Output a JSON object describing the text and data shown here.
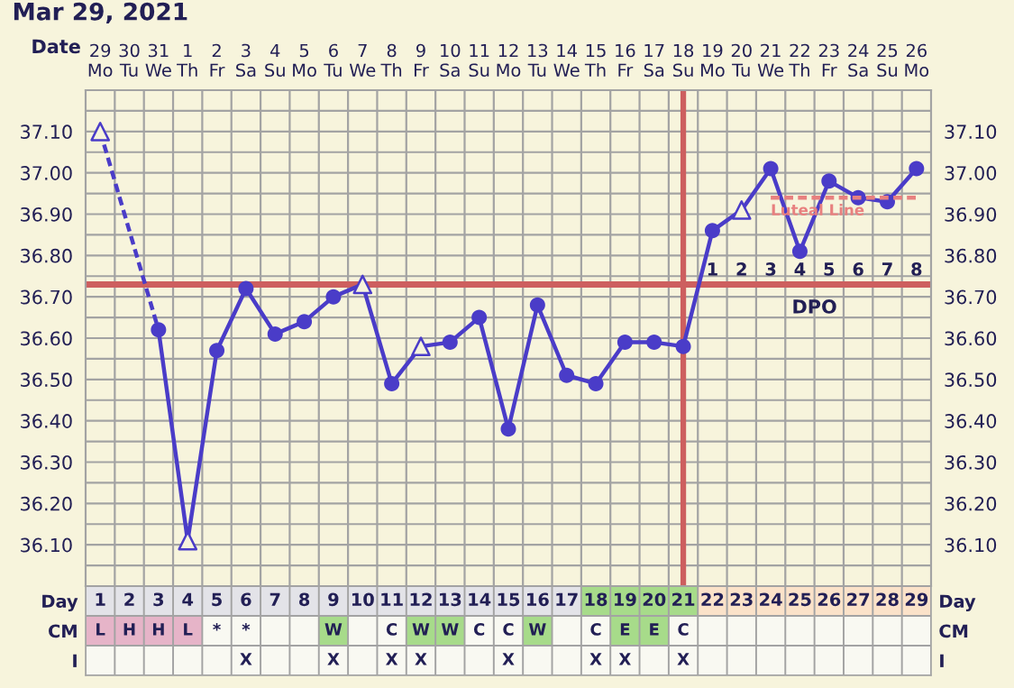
{
  "chart_data": [
    {
      "type": "line",
      "title": "Mar 29, 2021",
      "xlabel": "Date",
      "categories": [
        "29\nMo",
        "30\nTu",
        "31\nWe",
        "1\nTh",
        "2\nFr",
        "3\nSa",
        "4\nSu",
        "5\nMo",
        "6\nTu",
        "7\nWe",
        "8\nTh",
        "9\nFr",
        "10\nSa",
        "11\nSu",
        "12\nMo",
        "13\nTu",
        "14\nWe",
        "15\nTh",
        "16\nFr",
        "17\nSa",
        "18\nSu",
        "19\nMo",
        "20\nTu",
        "21\nWe",
        "22\nTh",
        "23\nFr",
        "24\nSa",
        "25\nSu",
        "26\nMo"
      ],
      "ylim": [
        36.0,
        37.2
      ],
      "yticks": [
        {
          "value": 36.1,
          "label": "36.10"
        },
        {
          "value": 36.2,
          "label": "36.20"
        },
        {
          "value": 36.3,
          "label": "36.30"
        },
        {
          "value": 36.4,
          "label": "36.40"
        },
        {
          "value": 36.5,
          "label": "36.50"
        },
        {
          "value": 36.6,
          "label": "36.60"
        },
        {
          "value": 36.7,
          "label": "36.70"
        },
        {
          "value": 36.8,
          "label": "36.80"
        },
        {
          "value": 36.9,
          "label": "36.90"
        },
        {
          "value": 37.0,
          "label": "37.00"
        },
        {
          "value": 37.1,
          "label": "37.10"
        }
      ],
      "y2lim": [
        36.0,
        37.2
      ],
      "y2ticks": [
        {
          "value": 36.1,
          "label": "36.10"
        },
        {
          "value": 36.2,
          "label": "36.20"
        },
        {
          "value": 36.3,
          "label": "36.30"
        },
        {
          "value": 36.4,
          "label": "36.40"
        },
        {
          "value": 36.5,
          "label": "36.50"
        },
        {
          "value": 36.6,
          "label": "36.60"
        },
        {
          "value": 36.7,
          "label": "36.70"
        },
        {
          "value": 36.8,
          "label": "36.80"
        },
        {
          "value": 36.9,
          "label": "36.90"
        },
        {
          "value": 37.0,
          "label": "37.00"
        },
        {
          "value": 37.1,
          "label": "37.10"
        }
      ],
      "grid": true,
      "series": [
        {
          "type": "line",
          "color": "#4a3cc8",
          "marker": "none",
          "line_style": "solid",
          "values": [
            null,
            null,
            36.62,
            36.11,
            36.57,
            36.72,
            36.61,
            36.64,
            36.7,
            36.73,
            36.49,
            36.58,
            36.59,
            36.65,
            36.38,
            36.68,
            36.51,
            36.49,
            36.59,
            36.59,
            36.58,
            36.86,
            36.91,
            37.01,
            36.81,
            36.98,
            36.94,
            36.93,
            37.01
          ]
        },
        {
          "type": "line",
          "color": "#4a3cc8",
          "marker": "none",
          "line_style": "dashed",
          "values": [
            37.1,
            null,
            36.62,
            null,
            null,
            null,
            null,
            null,
            null,
            null,
            null,
            null,
            null,
            null,
            null,
            null,
            null,
            null,
            null,
            null,
            null,
            null,
            null,
            null,
            null,
            null,
            null,
            null,
            null
          ]
        },
        {
          "type": "scatter",
          "color": "#4a3cc8",
          "marker": "circle",
          "values": [
            null,
            null,
            36.62,
            null,
            36.57,
            36.72,
            36.61,
            36.64,
            36.7,
            null,
            36.49,
            null,
            36.59,
            36.65,
            36.38,
            36.68,
            36.51,
            36.49,
            36.59,
            36.59,
            36.58,
            36.86,
            null,
            37.01,
            36.81,
            36.98,
            36.94,
            36.93,
            37.01
          ]
        },
        {
          "type": "scatter",
          "color": "#4a3cc8",
          "marker": "triangle",
          "values": [
            37.1,
            null,
            null,
            36.11,
            null,
            null,
            null,
            null,
            null,
            36.73,
            null,
            36.58,
            null,
            null,
            null,
            null,
            null,
            null,
            null,
            null,
            null,
            null,
            36.91,
            null,
            null,
            null,
            null,
            null,
            null
          ]
        },
        {
          "type": "line",
          "name": "Luteal Line",
          "color": "#e8807f",
          "marker": "none",
          "line_style": "dashed",
          "values": [
            null,
            null,
            null,
            null,
            null,
            null,
            null,
            null,
            null,
            null,
            null,
            null,
            null,
            null,
            null,
            null,
            null,
            null,
            null,
            null,
            null,
            null,
            null,
            36.94,
            36.94,
            36.94,
            36.94,
            36.94,
            36.94
          ]
        }
      ],
      "ref_lines": [
        {
          "axis": "y",
          "value": 36.73,
          "color": "#cd5f5f"
        },
        {
          "axis": "x",
          "value": "18\nSu",
          "color": "#cd5f5f"
        }
      ],
      "annotations": [
        "1",
        "2",
        "3",
        "4",
        "5",
        "6",
        "7",
        "8",
        "DPO"
      ]
    },
    {
      "type": "heatmap",
      "categories": [
        "1",
        "2",
        "3",
        "4",
        "5",
        "6",
        "7",
        "8",
        "9",
        "10",
        "11",
        "12",
        "13",
        "14",
        "15",
        "16",
        "17",
        "18",
        "19",
        "20",
        "21",
        "22",
        "23",
        "24",
        "25",
        "26",
        "27",
        "28",
        "29"
      ],
      "y_categories": [
        "Day",
        "CM",
        "I"
      ],
      "y2_categories": [
        "Day",
        "CM",
        "I"
      ],
      "cells": [
        [
          null,
          null,
          null,
          null,
          null,
          null,
          null,
          null,
          null,
          null,
          null,
          null,
          null,
          null,
          null,
          null,
          null,
          null,
          null,
          null,
          null,
          null,
          null,
          null,
          null,
          null,
          null,
          null,
          null
        ],
        [
          null,
          null,
          null,
          null,
          null,
          null,
          null,
          null,
          null,
          null,
          null,
          null,
          null,
          null,
          null,
          null,
          null,
          null,
          null,
          null,
          null,
          null,
          null,
          null,
          null,
          null,
          null,
          null,
          null
        ],
        [
          null,
          null,
          null,
          null,
          null,
          null,
          null,
          null,
          null,
          null,
          null,
          null,
          null,
          null,
          null,
          null,
          null,
          null,
          null,
          null,
          null,
          null,
          null,
          null,
          null,
          null,
          null,
          null,
          null
        ]
      ],
      "cell_labels": [
        [
          null,
          null,
          null,
          null,
          null,
          null,
          null,
          null,
          null,
          null,
          null,
          null,
          null,
          null,
          null,
          null,
          null,
          null,
          null,
          null,
          null,
          null,
          null,
          null,
          null,
          null,
          null,
          null,
          null
        ],
        [
          "L",
          "H",
          "H",
          "L",
          "*",
          "*",
          null,
          null,
          "W",
          null,
          "C",
          "W",
          "W",
          "C",
          "C",
          "W",
          null,
          "C",
          "E",
          "E",
          "C",
          null,
          null,
          null,
          null,
          null,
          null,
          null,
          null
        ],
        [
          null,
          null,
          null,
          null,
          null,
          "X",
          null,
          null,
          "X",
          null,
          "X",
          "X",
          null,
          null,
          "X",
          null,
          null,
          "X",
          "X",
          null,
          "X",
          null,
          null,
          null,
          null,
          null,
          null,
          null,
          null
        ]
      ],
      "colors": [
        [
          "#e3e3e8",
          "#e3e3e8",
          "#e3e3e8",
          "#e3e3e8",
          "#e3e3e8",
          "#e3e3e8",
          "#e3e3e8",
          "#e3e3e8",
          "#e3e3e8",
          "#e3e3e8",
          "#e3e3e8",
          "#e3e3e8",
          "#e3e3e8",
          "#e3e3e8",
          "#e3e3e8",
          "#e3e3e8",
          "#e3e3e8",
          "#a7db8a",
          "#a7db8a",
          "#a7db8a",
          "#a7db8a",
          "#fbe2c9",
          "#fbe2c9",
          "#fbe2c9",
          "#fbe2c9",
          "#fbe2c9",
          "#fbe2c9",
          "#fbe2c9",
          "#fbe2c9"
        ],
        [
          "#e6b4c8",
          "#e6b4c8",
          "#e6b4c8",
          "#e6b4c8",
          null,
          null,
          null,
          null,
          "#a7db8a",
          null,
          null,
          "#a7db8a",
          "#a7db8a",
          null,
          null,
          "#a7db8a",
          null,
          null,
          "#a7db8a",
          "#a7db8a",
          null,
          null,
          null,
          null,
          null,
          null,
          null,
          null,
          null
        ],
        [
          null,
          null,
          null,
          null,
          null,
          null,
          null,
          null,
          null,
          null,
          null,
          null,
          null,
          null,
          null,
          null,
          null,
          null,
          null,
          null,
          null,
          null,
          null,
          null,
          null,
          null,
          null,
          null,
          null
        ]
      ]
    }
  ]
}
